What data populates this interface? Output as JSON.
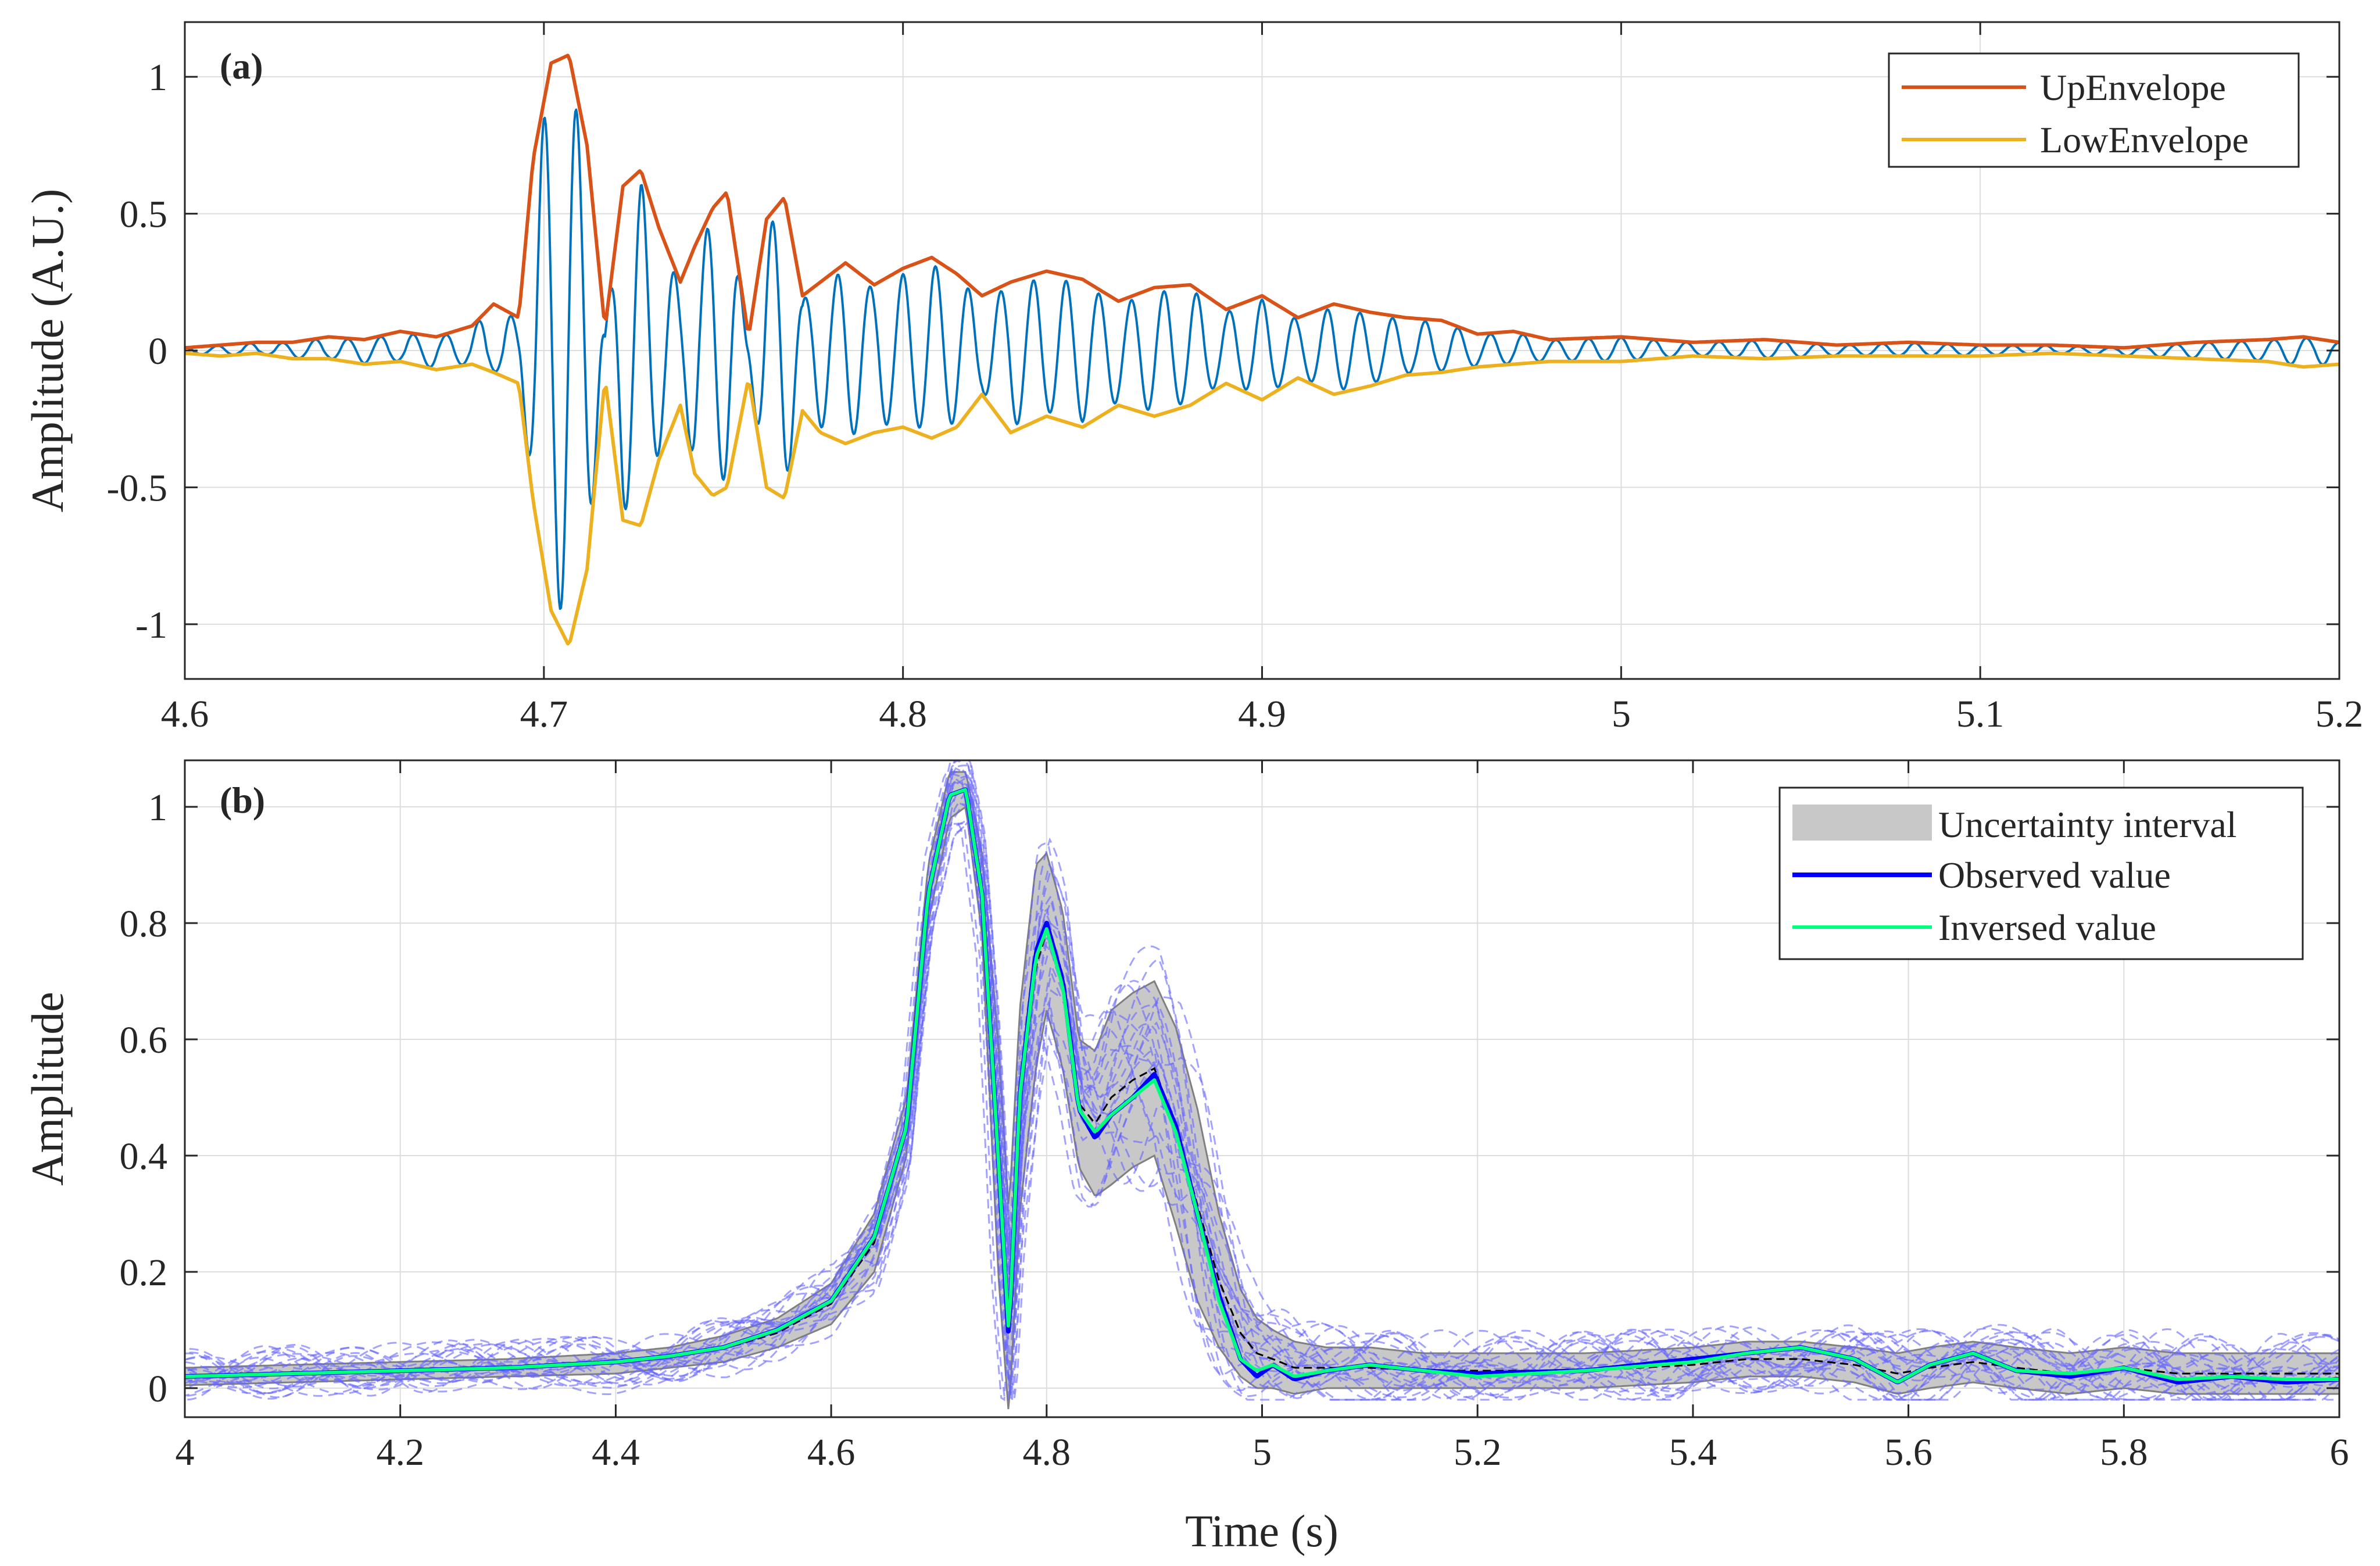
{
  "chart_data": [
    {
      "panel": "(a)",
      "type": "line",
      "title": "",
      "xlabel": "",
      "ylabel": "Amplitude (A.U.)",
      "xlim": [
        4.6,
        5.2
      ],
      "ylim": [
        -1.2,
        1.2
      ],
      "xticks": [
        4.6,
        4.7,
        4.8,
        4.9,
        5.0,
        5.1,
        5.2
      ],
      "xtick_labels": [
        "4.6",
        "4.7",
        "4.8",
        "4.9",
        "5",
        "5.1",
        "5.2"
      ],
      "yticks": [
        1,
        0.5,
        0,
        -0.5,
        -1
      ],
      "ytick_labels": [
        "1",
        "0.5",
        "0",
        "-0.5",
        "-1"
      ],
      "grid": true,
      "legend_position": "top-right",
      "legend": [
        "UpEnvelope",
        "LowEnvelope"
      ],
      "colors": {
        "signal": "#0072BD",
        "up": "#D95319",
        "low": "#EDB120"
      },
      "envelope_peaks": {
        "t": [
          4.6,
          4.61,
          4.62,
          4.63,
          4.64,
          4.65,
          4.66,
          4.67,
          4.68,
          4.686,
          4.693,
          4.697,
          4.702,
          4.707,
          4.712,
          4.717,
          4.722,
          4.727,
          4.732,
          4.738,
          4.742,
          4.747,
          4.751,
          4.757,
          4.762,
          4.767,
          4.772,
          4.777,
          4.784,
          4.792,
          4.8,
          4.808,
          4.815,
          4.822,
          4.83,
          4.84,
          4.85,
          4.86,
          4.87,
          4.88,
          4.89,
          4.9,
          4.91,
          4.92,
          4.93,
          4.94,
          4.95,
          4.96,
          4.97,
          4.98,
          5.0,
          5.02,
          5.04,
          5.06,
          5.08,
          5.1,
          5.12,
          5.14,
          5.16,
          5.18,
          5.19,
          5.2
        ],
        "up": [
          0.01,
          0.02,
          0.03,
          0.03,
          0.05,
          0.04,
          0.07,
          0.05,
          0.09,
          0.17,
          0.12,
          0.7,
          1.05,
          1.08,
          0.75,
          0.08,
          0.6,
          0.66,
          0.45,
          0.25,
          0.38,
          0.52,
          0.58,
          0.05,
          0.48,
          0.56,
          0.2,
          0.25,
          0.32,
          0.24,
          0.3,
          0.34,
          0.28,
          0.2,
          0.25,
          0.29,
          0.26,
          0.18,
          0.23,
          0.24,
          0.15,
          0.2,
          0.12,
          0.17,
          0.14,
          0.12,
          0.11,
          0.06,
          0.07,
          0.04,
          0.05,
          0.03,
          0.04,
          0.02,
          0.03,
          0.02,
          0.02,
          0.01,
          0.03,
          0.04,
          0.05,
          0.03
        ],
        "low": [
          -0.01,
          -0.02,
          -0.01,
          -0.03,
          -0.03,
          -0.05,
          -0.04,
          -0.07,
          -0.05,
          -0.08,
          -0.12,
          -0.55,
          -0.95,
          -1.08,
          -0.8,
          -0.1,
          -0.62,
          -0.64,
          -0.4,
          -0.2,
          -0.45,
          -0.53,
          -0.5,
          -0.1,
          -0.5,
          -0.54,
          -0.22,
          -0.3,
          -0.34,
          -0.3,
          -0.28,
          -0.32,
          -0.28,
          -0.16,
          -0.3,
          -0.24,
          -0.28,
          -0.2,
          -0.24,
          -0.2,
          -0.12,
          -0.18,
          -0.1,
          -0.16,
          -0.13,
          -0.09,
          -0.08,
          -0.06,
          -0.05,
          -0.04,
          -0.04,
          -0.02,
          -0.03,
          -0.02,
          -0.02,
          -0.02,
          -0.01,
          -0.02,
          -0.03,
          -0.04,
          -0.06,
          -0.05
        ]
      },
      "carrier_frequency_hz": 110
    },
    {
      "panel": "(b)",
      "type": "line",
      "title": "",
      "xlabel": "Time (s)",
      "ylabel": "Amplitude",
      "xlim": [
        4.0,
        6.0
      ],
      "ylim": [
        -0.05,
        1.08
      ],
      "xticks": [
        4.0,
        4.2,
        4.4,
        4.6,
        4.8,
        5.0,
        5.2,
        5.4,
        5.6,
        5.8,
        6.0
      ],
      "xtick_labels": [
        "4",
        "4.2",
        "4.4",
        "4.6",
        "4.8",
        "5",
        "5.2",
        "5.4",
        "5.6",
        "5.8",
        "6"
      ],
      "yticks": [
        0,
        0.2,
        0.4,
        0.6,
        0.8,
        1
      ],
      "ytick_labels": [
        "0",
        "0.2",
        "0.4",
        "0.6",
        "0.8",
        "1"
      ],
      "grid": true,
      "legend_position": "top-right",
      "legend": [
        "Uncertainty interval",
        "Observed value",
        "Inversed value"
      ],
      "colors": {
        "band": "#C8C8C8",
        "band_edge": "#808080",
        "observed": "#0000FF",
        "inversed": "#00FF7F",
        "mean": "#000000",
        "samples": "#6666FF"
      },
      "x": [
        4.0,
        4.1,
        4.2,
        4.3,
        4.4,
        4.45,
        4.5,
        4.55,
        4.6,
        4.64,
        4.67,
        4.69,
        4.71,
        4.725,
        4.74,
        4.755,
        4.765,
        4.775,
        4.79,
        4.8,
        4.815,
        4.83,
        4.845,
        4.86,
        4.88,
        4.9,
        4.92,
        4.94,
        4.96,
        4.98,
        4.995,
        5.01,
        5.03,
        5.06,
        5.1,
        5.15,
        5.2,
        5.3,
        5.4,
        5.45,
        5.5,
        5.55,
        5.59,
        5.62,
        5.66,
        5.7,
        5.75,
        5.8,
        5.85,
        5.9,
        5.95,
        6.0
      ],
      "observed": [
        0.02,
        0.025,
        0.03,
        0.035,
        0.045,
        0.055,
        0.07,
        0.1,
        0.15,
        0.26,
        0.45,
        0.85,
        1.02,
        1.03,
        0.85,
        0.4,
        0.08,
        0.5,
        0.75,
        0.8,
        0.7,
        0.48,
        0.43,
        0.47,
        0.5,
        0.54,
        0.45,
        0.3,
        0.16,
        0.05,
        0.02,
        0.04,
        0.015,
        0.03,
        0.04,
        0.03,
        0.025,
        0.03,
        0.05,
        0.06,
        0.07,
        0.05,
        0.01,
        0.04,
        0.06,
        0.03,
        0.02,
        0.035,
        0.01,
        0.02,
        0.01,
        0.015
      ],
      "inversed": [
        0.02,
        0.025,
        0.03,
        0.035,
        0.045,
        0.055,
        0.07,
        0.1,
        0.15,
        0.26,
        0.45,
        0.85,
        1.02,
        1.03,
        0.85,
        0.4,
        0.09,
        0.5,
        0.74,
        0.79,
        0.69,
        0.48,
        0.44,
        0.47,
        0.5,
        0.53,
        0.44,
        0.3,
        0.15,
        0.05,
        0.03,
        0.04,
        0.02,
        0.03,
        0.04,
        0.03,
        0.02,
        0.03,
        0.045,
        0.06,
        0.07,
        0.05,
        0.01,
        0.04,
        0.06,
        0.03,
        0.025,
        0.035,
        0.015,
        0.02,
        0.015,
        0.015
      ],
      "band_upper": [
        0.035,
        0.04,
        0.045,
        0.05,
        0.06,
        0.07,
        0.09,
        0.12,
        0.18,
        0.3,
        0.5,
        0.9,
        1.06,
        1.06,
        0.92,
        0.6,
        0.3,
        0.65,
        0.9,
        0.92,
        0.82,
        0.6,
        0.58,
        0.65,
        0.68,
        0.7,
        0.62,
        0.48,
        0.3,
        0.17,
        0.12,
        0.1,
        0.08,
        0.07,
        0.07,
        0.06,
        0.06,
        0.06,
        0.07,
        0.08,
        0.08,
        0.07,
        0.06,
        0.07,
        0.08,
        0.07,
        0.06,
        0.07,
        0.06,
        0.06,
        0.06,
        0.06
      ],
      "band_lower": [
        0.005,
        0.01,
        0.015,
        0.02,
        0.025,
        0.035,
        0.045,
        0.07,
        0.11,
        0.2,
        0.4,
        0.8,
        0.98,
        1.0,
        0.78,
        0.2,
        -0.05,
        0.3,
        0.55,
        0.65,
        0.55,
        0.38,
        0.33,
        0.35,
        0.38,
        0.4,
        0.28,
        0.15,
        0.07,
        0.02,
        0.0,
        0.0,
        -0.01,
        0.0,
        0.0,
        0.0,
        0.0,
        0.0,
        0.01,
        0.02,
        0.02,
        0.01,
        -0.01,
        0.0,
        0.01,
        0.0,
        -0.01,
        0.0,
        -0.01,
        -0.01,
        -0.01,
        -0.01
      ]
    }
  ]
}
